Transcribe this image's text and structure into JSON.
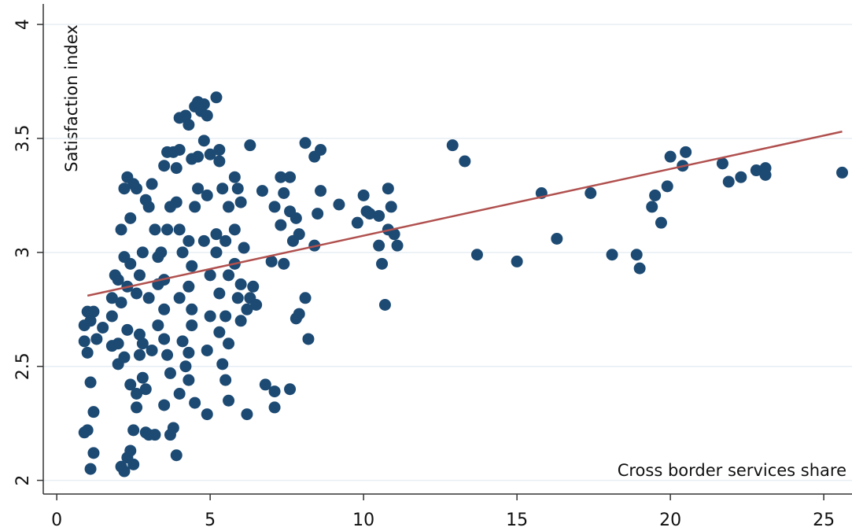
{
  "chart_data": {
    "type": "scatter",
    "x_label": "Cross border services share",
    "y_label": "Satisfaction index",
    "xlim": [
      -0.44,
      25.92
    ],
    "ylim": [
      1.94,
      4.09
    ],
    "xticks": [
      0,
      5,
      10,
      15,
      20,
      25
    ],
    "yticks": [
      2,
      2.5,
      3,
      3.5,
      4
    ],
    "grid": true,
    "series": [
      {
        "type": "scatter",
        "color": "#1c4a73",
        "x": [
          6.3,
          8.1,
          8.4,
          8.6,
          9.2,
          8.6,
          8.5,
          8.4,
          7.6,
          7.3,
          7.1,
          7.4,
          7.6,
          7.8,
          7.3,
          7.7,
          7.9,
          6.7,
          7.0,
          7.4,
          8.1,
          7.9,
          7.8,
          8.2,
          6.8,
          7.1,
          7.1,
          7.6,
          6.2,
          10.0,
          10.1,
          10.5,
          10.8,
          10.9,
          11.0,
          11.1,
          10.5,
          10.6,
          10.8,
          10.7,
          9.8,
          10.2,
          12.9,
          13.3,
          13.7,
          15.0,
          15.8,
          16.3,
          17.4,
          18.1,
          18.9,
          19.0,
          19.4,
          19.5,
          19.7,
          19.9,
          20.0,
          20.4,
          20.5,
          21.7,
          21.9,
          22.3,
          22.8,
          23.1,
          23.1,
          25.6,
          0.9,
          0.9,
          1.0,
          1.0,
          1.2,
          1.1,
          1.3,
          1.5,
          1.1,
          1.2,
          1.2,
          1.0,
          0.9,
          1.1,
          1.8,
          1.9,
          1.8,
          1.8,
          2.0,
          2.0,
          2.1,
          2.2,
          2.3,
          2.4,
          2.5,
          2.1,
          2.2,
          2.3,
          2.5,
          2.6,
          2.4,
          2.2,
          2.4,
          2.3,
          2.1,
          2.3,
          2.2,
          2.4,
          2.6,
          2.6,
          2.5,
          2.7,
          2.7,
          2.8,
          2.9,
          2.9,
          3.0,
          3.2,
          3.1,
          3.3,
          3.3,
          3.2,
          3.0,
          3.1,
          2.9,
          2.8,
          2.7,
          2.6,
          3.5,
          3.6,
          3.8,
          3.9,
          3.7,
          3.6,
          3.5,
          3.5,
          3.5,
          3.6,
          3.7,
          3.5,
          3.8,
          3.9,
          3.7,
          4.0,
          4.1,
          4.0,
          4.1,
          4.0,
          3.9,
          4.0,
          4.0,
          4.2,
          4.3,
          4.5,
          4.6,
          4.8,
          4.9,
          5.2,
          4.7,
          4.6,
          4.4,
          4.6,
          4.5,
          4.3,
          4.4,
          4.3,
          4.4,
          4.4,
          4.3,
          4.2,
          4.3,
          4.5,
          4.9,
          4.9,
          5.0,
          5.0,
          4.8,
          4.9,
          4.8,
          5.0,
          5.3,
          5.3,
          5.4,
          5.2,
          5.2,
          5.3,
          5.3,
          5.4,
          5.5,
          5.6,
          5.6,
          5.5,
          5.6,
          5.5,
          5.6,
          5.8,
          5.9,
          5.8,
          5.8,
          5.9,
          6.0,
          6.0,
          6.1,
          6.0,
          6.2,
          6.3,
          6.4,
          6.5,
          3.0,
          3.3,
          3.4,
          2.8,
          2.0
        ],
        "values": [
          3.47,
          3.48,
          3.42,
          3.45,
          3.21,
          3.27,
          3.17,
          3.03,
          3.33,
          3.33,
          3.2,
          3.26,
          3.18,
          3.15,
          3.12,
          3.05,
          3.08,
          3.27,
          2.96,
          2.95,
          2.8,
          2.73,
          2.71,
          2.62,
          2.42,
          2.39,
          2.32,
          2.4,
          2.29,
          3.25,
          3.18,
          3.16,
          3.28,
          3.2,
          3.08,
          3.03,
          3.03,
          2.95,
          3.1,
          2.77,
          3.13,
          3.17,
          3.47,
          3.4,
          2.99,
          2.96,
          3.26,
          3.06,
          3.26,
          2.99,
          2.99,
          2.93,
          3.2,
          3.25,
          3.13,
          3.29,
          3.42,
          3.38,
          3.44,
          3.39,
          3.31,
          3.33,
          3.36,
          3.37,
          3.34,
          3.35,
          2.68,
          2.61,
          2.74,
          2.56,
          2.74,
          2.7,
          2.62,
          2.67,
          2.43,
          2.3,
          2.12,
          2.22,
          2.21,
          2.05,
          2.8,
          2.9,
          2.72,
          2.59,
          2.6,
          2.51,
          2.06,
          2.04,
          2.1,
          2.13,
          2.07,
          3.1,
          3.28,
          3.33,
          3.3,
          3.28,
          3.15,
          2.98,
          2.95,
          2.85,
          2.78,
          2.66,
          2.54,
          2.42,
          2.38,
          2.32,
          2.22,
          2.64,
          2.55,
          2.45,
          2.4,
          2.21,
          2.2,
          2.2,
          2.57,
          2.68,
          2.98,
          3.1,
          3.2,
          3.3,
          3.23,
          3.0,
          2.9,
          2.82,
          3.38,
          3.44,
          3.44,
          3.37,
          3.2,
          3.1,
          2.88,
          2.75,
          2.62,
          2.55,
          2.47,
          2.33,
          2.23,
          2.11,
          2.2,
          2.38,
          2.61,
          2.8,
          3.0,
          3.1,
          3.22,
          3.45,
          3.59,
          3.6,
          3.56,
          3.64,
          3.66,
          3.65,
          3.6,
          3.68,
          3.62,
          3.42,
          3.41,
          3.28,
          3.2,
          3.05,
          2.94,
          2.85,
          2.75,
          2.68,
          2.56,
          2.5,
          2.44,
          2.34,
          2.29,
          2.57,
          2.72,
          2.9,
          3.05,
          3.25,
          3.49,
          3.43,
          3.45,
          3.4,
          3.28,
          3.08,
          3.0,
          2.82,
          2.65,
          2.51,
          2.44,
          2.35,
          2.6,
          2.72,
          2.9,
          3.05,
          3.2,
          3.33,
          3.28,
          3.1,
          2.95,
          2.8,
          2.7,
          2.86,
          3.02,
          3.22,
          2.75,
          2.8,
          2.85,
          2.77,
          2.8,
          2.86,
          3.0,
          2.6,
          2.88
        ]
      },
      {
        "type": "line",
        "color": "#b0504e",
        "x": [
          1.0,
          25.6
        ],
        "values": [
          2.81,
          3.53
        ]
      }
    ]
  }
}
